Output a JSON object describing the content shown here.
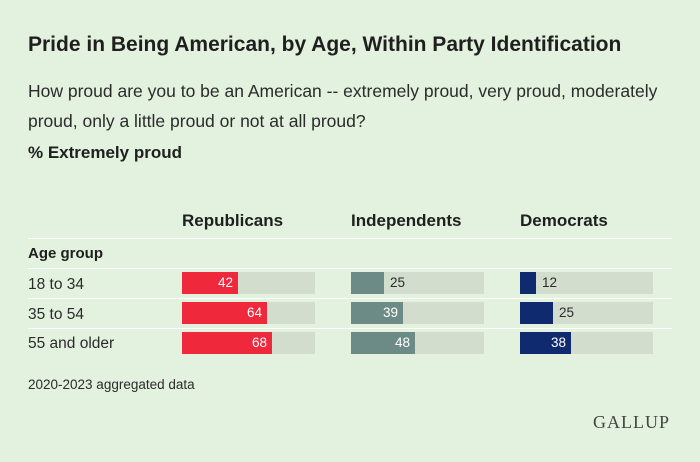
{
  "chart_data": {
    "type": "bar",
    "title": "Pride in Being American, by Age, Within Party Identification",
    "subtitle": "How proud are you to be an American -- extremely proud, very proud, moderately proud, only a little proud or not at all proud?",
    "measure_label": "% Extremely proud",
    "group_label": "Age group",
    "categories": [
      "18 to 34",
      "35 to 54",
      "55 and older"
    ],
    "series": [
      {
        "name": "Republicans",
        "color": "#f0283c",
        "values": [
          42,
          64,
          68
        ]
      },
      {
        "name": "Independents",
        "color": "#6c8b87",
        "values": [
          25,
          39,
          48
        ]
      },
      {
        "name": "Democrats",
        "color": "#0f2a6e",
        "values": [
          12,
          25,
          38
        ]
      }
    ],
    "xlim": [
      0,
      100
    ],
    "footnote": "2020-2023 aggregated data",
    "source_logo": "GALLUP"
  }
}
